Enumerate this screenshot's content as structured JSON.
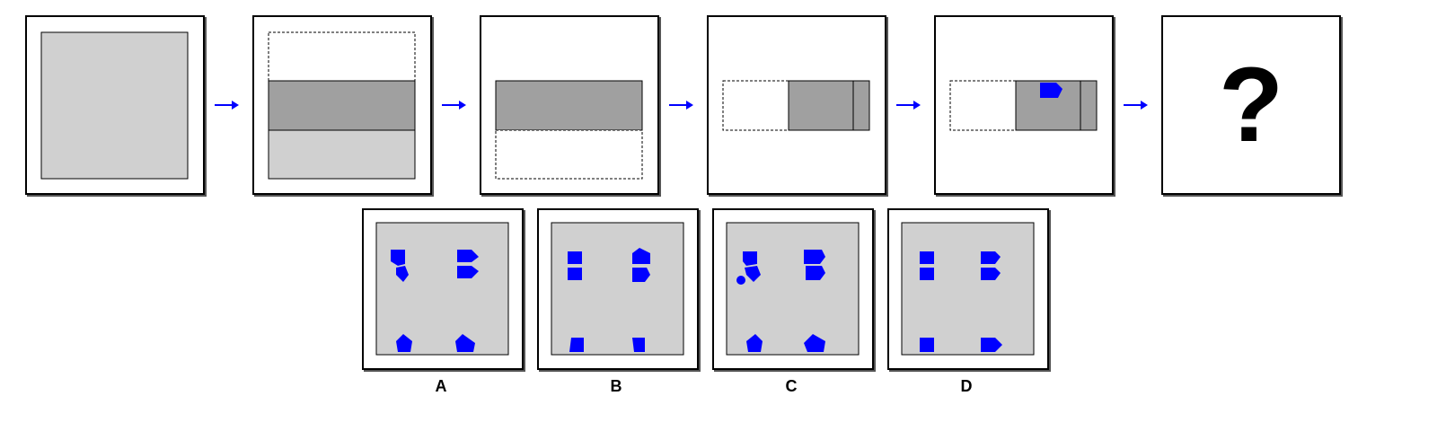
{
  "question_mark": "?",
  "options": [
    {
      "label": "A"
    },
    {
      "label": "B"
    },
    {
      "label": "C"
    },
    {
      "label": "D"
    }
  ],
  "colors": {
    "paper": "#d0d0d0",
    "folded": "#a0a0a0",
    "hole": "#0000ff",
    "arrow": "#0000ff",
    "outline": "#000000"
  }
}
